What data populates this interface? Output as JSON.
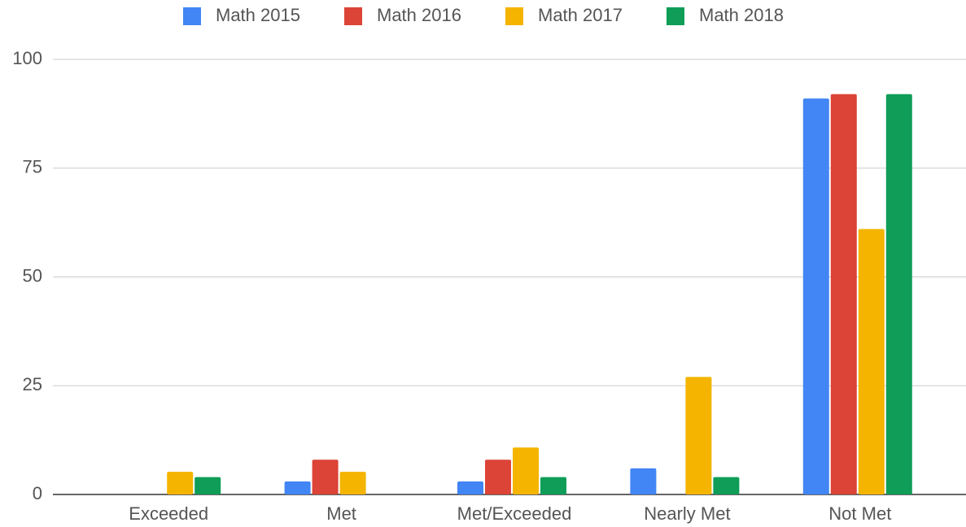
{
  "chart_data": {
    "type": "bar",
    "categories": [
      "Exceeded",
      "Met",
      "Met/Exceeded",
      "Nearly Met",
      "Not Met"
    ],
    "series": [
      {
        "name": "Math 2015",
        "color": "#4285f4",
        "values": [
          0,
          3,
          3,
          6,
          91
        ]
      },
      {
        "name": "Math 2016",
        "color": "#db4437",
        "values": [
          0,
          8,
          8,
          0,
          92
        ]
      },
      {
        "name": "Math 2017",
        "color": "#f4b400",
        "values": [
          5.2,
          5.2,
          10.8,
          27,
          61
        ]
      },
      {
        "name": "Math 2018",
        "color": "#0f9d58",
        "values": [
          4,
          0,
          4,
          4,
          92
        ]
      }
    ],
    "ylim": [
      0,
      100
    ],
    "yticks": [
      0,
      25,
      50,
      75,
      100
    ],
    "grid": true,
    "legend": "top"
  }
}
